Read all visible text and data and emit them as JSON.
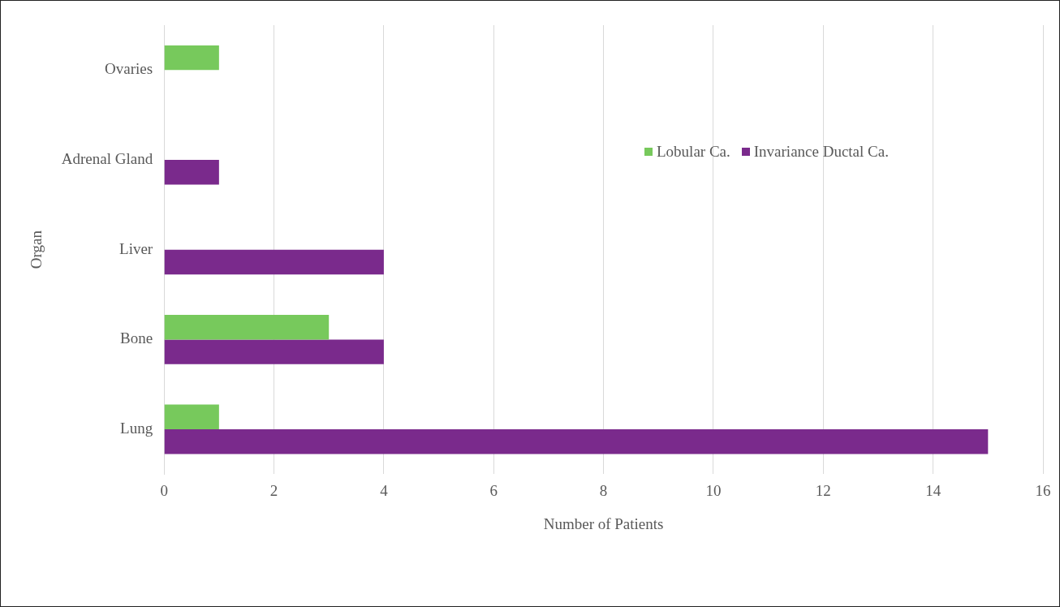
{
  "chart_data": {
    "type": "bar",
    "orientation": "horizontal",
    "xlabel": "Number of Patients",
    "ylabel": "Organ",
    "categories": [
      "Ovaries",
      "Adrenal Gland",
      "Liver",
      "Bone",
      "Lung"
    ],
    "series": [
      {
        "name": "Lobular Ca.",
        "color": "#77c95c",
        "values": [
          1,
          0,
          0,
          3,
          1
        ]
      },
      {
        "name": "Invariance Ductal Ca.",
        "color": "#7a2a8c",
        "values": [
          0,
          1,
          4,
          4,
          15
        ]
      }
    ],
    "xlim": [
      0,
      16
    ],
    "xticks": [
      0,
      2,
      4,
      6,
      8,
      10,
      12,
      14,
      16
    ],
    "grid": "x",
    "legend": "top right"
  }
}
